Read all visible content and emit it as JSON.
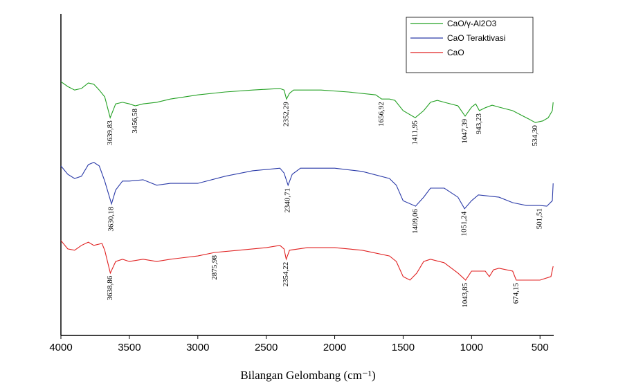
{
  "chart_data": {
    "type": "line",
    "x_label": "Bilangan Gelombang (cm⁻¹)",
    "xlim": [
      4000,
      400
    ],
    "xticks": [
      4000,
      3500,
      3000,
      2500,
      2000,
      1500,
      1000,
      500
    ],
    "ylim": [
      0,
      100
    ],
    "legend": "top-right",
    "series": [
      {
        "name": "CaO/γ-Al2O3",
        "color": "#22a022",
        "x": [
          4000,
          3950,
          3900,
          3850,
          3800,
          3760,
          3720,
          3680,
          3639.83,
          3600,
          3550,
          3500,
          3456.58,
          3400,
          3300,
          3200,
          3000,
          2800,
          2600,
          2400,
          2370,
          2352.29,
          2330,
          2300,
          2100,
          1900,
          1700,
          1656.92,
          1600,
          1560,
          1500,
          1411.95,
          1350,
          1300,
          1250,
          1200,
          1100,
          1047.39,
          1000,
          970,
          943.23,
          900,
          850,
          800,
          700,
          600,
          534.3,
          480,
          440,
          410,
          404
        ],
        "values": [
          78.9,
          77.4,
          76.3,
          76.8,
          78.5,
          78.1,
          76.3,
          74.2,
          67.7,
          72.0,
          72.5,
          72.0,
          71.4,
          72.0,
          72.5,
          73.5,
          74.8,
          75.7,
          76.3,
          76.8,
          76.3,
          73.5,
          75.3,
          76.3,
          76.3,
          75.7,
          74.8,
          73.5,
          73.5,
          73.1,
          69.9,
          67.7,
          69.9,
          72.5,
          73.1,
          72.5,
          71.4,
          68.2,
          71.0,
          72.0,
          69.9,
          70.8,
          71.6,
          71.0,
          69.9,
          67.7,
          66.2,
          66.7,
          67.7,
          69.9,
          72.5
        ],
        "peaks": [
          {
            "value": 3639.83,
            "label": "3639,83"
          },
          {
            "value": 3456.58,
            "label": "3456,58"
          },
          {
            "value": 2352.29,
            "label": "2352,29"
          },
          {
            "value": 1656.92,
            "label": "1656,92"
          },
          {
            "value": 1411.95,
            "label": "1411,95"
          },
          {
            "value": 1047.39,
            "label": "1047,39"
          },
          {
            "value": 943.23,
            "label": "943,23"
          },
          {
            "value": 534.3,
            "label": "534,30"
          }
        ]
      },
      {
        "name": "CaO Teraktivasi",
        "color": "#2a3aa8",
        "x": [
          4000,
          3950,
          3900,
          3850,
          3800,
          3760,
          3720,
          3680,
          3630.18,
          3600,
          3550,
          3500,
          3400,
          3300,
          3200,
          3000,
          2800,
          2600,
          2400,
          2370,
          2340.71,
          2310,
          2250,
          2000,
          1800,
          1600,
          1550,
          1500,
          1409.06,
          1350,
          1300,
          1200,
          1100,
          1051.24,
          1000,
          950,
          800,
          700,
          600,
          501.51,
          450,
          410,
          404
        ],
        "values": [
          52.7,
          50.1,
          48.8,
          49.5,
          53.1,
          53.8,
          52.7,
          48.0,
          40.9,
          45.2,
          48.0,
          48.0,
          48.4,
          46.7,
          47.3,
          47.3,
          49.5,
          51.2,
          52.0,
          50.5,
          46.7,
          50.1,
          52.0,
          52.0,
          51.0,
          48.8,
          46.7,
          41.9,
          40.2,
          43.0,
          45.8,
          45.8,
          43.0,
          39.4,
          41.9,
          43.7,
          43.0,
          41.3,
          40.4,
          40.4,
          40.2,
          41.9,
          47.3
        ],
        "peaks": [
          {
            "value": 3630.18,
            "label": "3630,18"
          },
          {
            "value": 2340.71,
            "label": "2340,71"
          },
          {
            "value": 1409.06,
            "label": "1409,06"
          },
          {
            "value": 1051.24,
            "label": "1051,24"
          },
          {
            "value": 501.51,
            "label": "501,51"
          }
        ]
      },
      {
        "name": "CaO",
        "color": "#e02020",
        "x": [
          4000,
          3950,
          3900,
          3850,
          3800,
          3760,
          3700,
          3680,
          3638.86,
          3600,
          3550,
          3500,
          3400,
          3300,
          3200,
          3000,
          2875.98,
          2700,
          2500,
          2400,
          2370,
          2354.22,
          2330,
          2200,
          2000,
          1800,
          1600,
          1550,
          1500,
          1450,
          1400,
          1350,
          1300,
          1200,
          1100,
          1043.85,
          1000,
          950,
          900,
          870,
          840,
          800,
          700,
          674.15,
          600,
          500,
          420,
          404
        ],
        "values": [
          29.5,
          26.9,
          26.5,
          28.0,
          29.0,
          28.0,
          28.6,
          26.5,
          19.4,
          23.0,
          23.7,
          23.0,
          23.7,
          23.0,
          23.7,
          24.7,
          25.8,
          26.5,
          27.3,
          28.0,
          26.9,
          23.7,
          26.5,
          27.3,
          27.3,
          26.5,
          24.7,
          23.0,
          18.3,
          17.2,
          19.4,
          23.0,
          23.7,
          22.6,
          19.4,
          17.2,
          20.0,
          20.0,
          20.0,
          18.3,
          20.4,
          20.9,
          20.0,
          17.2,
          17.2,
          17.2,
          18.3,
          21.5
        ],
        "peaks": [
          {
            "value": 3638.86,
            "label": "3638,86"
          },
          {
            "value": 2875.98,
            "label": "2875,98"
          },
          {
            "value": 2354.22,
            "label": "2354,22"
          },
          {
            "value": 1043.85,
            "label": "1043,85"
          },
          {
            "value": 674.15,
            "label": "674,15"
          }
        ]
      }
    ]
  }
}
